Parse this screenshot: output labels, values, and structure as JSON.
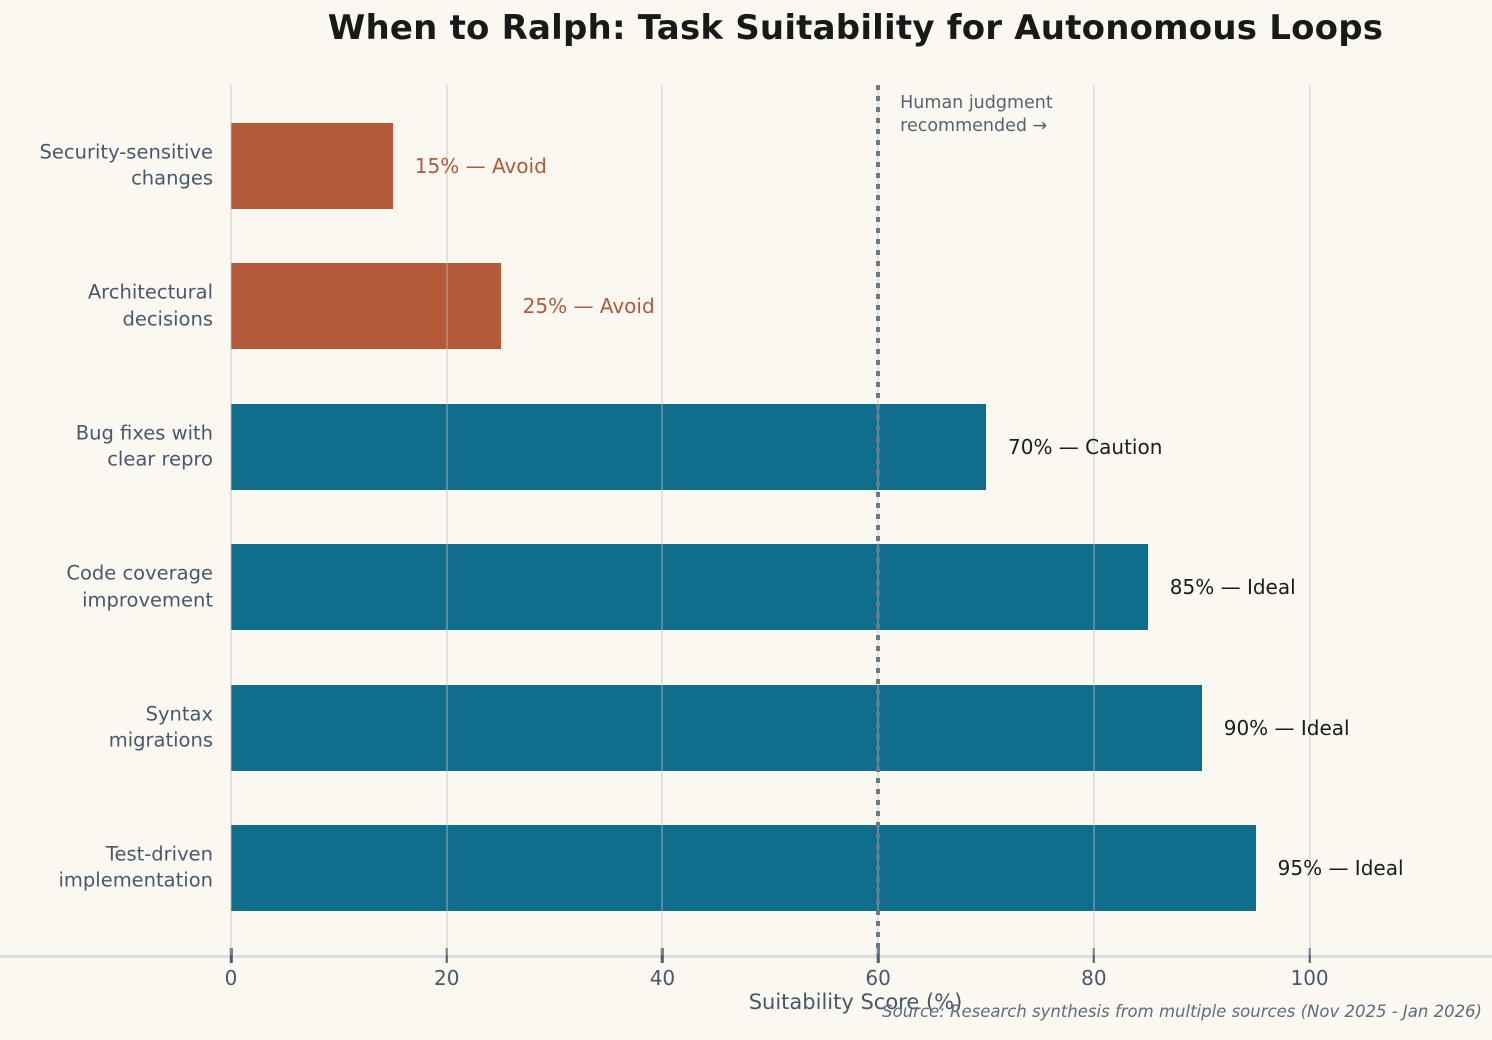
{
  "title": "When to Ralph: Task Suitability for Autonomous Loops",
  "source_note": "Source: Research synthesis from multiple sources (Nov 2025 - Jan 2026)",
  "chart_data": {
    "type": "bar",
    "orientation": "horizontal",
    "title": "When to Ralph: Task Suitability for Autonomous Loops",
    "categories": [
      "Security-sensitive\nchanges",
      "Architectural\ndecisions",
      "Bug fixes with\nclear repro",
      "Code coverage\nimprovement",
      "Syntax\nmigrations",
      "Test-driven\nimplementation"
    ],
    "values": [
      15,
      25,
      70,
      85,
      90,
      95
    ],
    "bar_labels": [
      "15% — Avoid",
      "25% — Avoid",
      "70% — Caution",
      "85% — Ideal",
      "90% — Ideal",
      "95% — Ideal"
    ],
    "statuses": [
      "avoid",
      "avoid",
      "caution",
      "ideal",
      "ideal",
      "ideal"
    ],
    "xlabel": "Suitability Score (%)",
    "xticks": [
      0,
      20,
      40,
      60,
      80,
      100
    ],
    "xlim": [
      0,
      115.8
    ],
    "grid": "vertical",
    "legend": "none",
    "reference_line": {
      "x": 60,
      "label": "Human judgment\nrecommended →"
    },
    "colors": {
      "ideal_bar": "#0e6e8c",
      "caution_bar": "#0e6e8c",
      "avoid_bar": "#b45a38",
      "avoid_value_text": "#b45a38",
      "value_text": "#1c1c1c",
      "background": "#faf8f1"
    }
  }
}
